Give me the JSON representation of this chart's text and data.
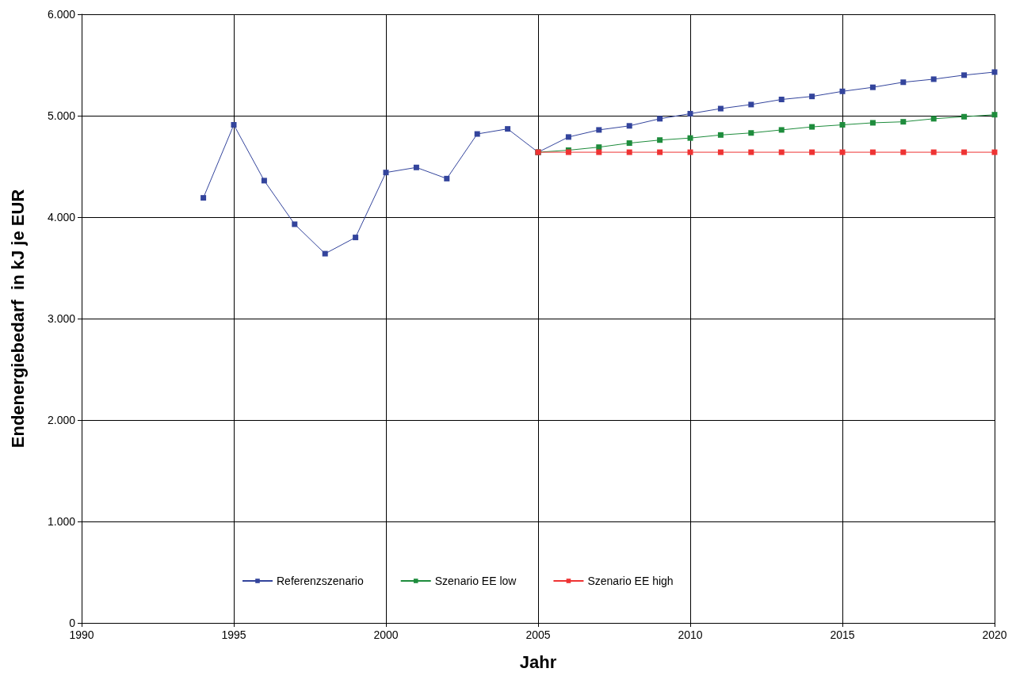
{
  "chart_data": {
    "type": "line",
    "xlabel": "Jahr",
    "ylabel": "Endenergiebedarf  in kJ je EUR",
    "x": [
      1994,
      1995,
      1996,
      1997,
      1998,
      1999,
      2000,
      2001,
      2002,
      2003,
      2004,
      2005,
      2006,
      2007,
      2008,
      2009,
      2010,
      2011,
      2012,
      2013,
      2014,
      2015,
      2016,
      2017,
      2018,
      2019,
      2020
    ],
    "series": [
      {
        "name": "Referenzszenario",
        "color": "#33449c",
        "values": [
          4190,
          4910,
          4360,
          3930,
          3640,
          3800,
          4440,
          4490,
          4380,
          4820,
          4870,
          4640,
          4790,
          4860,
          4900,
          4970,
          5020,
          5070,
          5110,
          5160,
          5190,
          5240,
          5280,
          5330,
          5360,
          5400,
          5430
        ]
      },
      {
        "name": "Szenario EE low",
        "color": "#1e8c3c",
        "x": [
          2005,
          2006,
          2007,
          2008,
          2009,
          2010,
          2011,
          2012,
          2013,
          2014,
          2015,
          2016,
          2017,
          2018,
          2019,
          2020
        ],
        "values": [
          4640,
          4660,
          4690,
          4730,
          4760,
          4780,
          4810,
          4830,
          4860,
          4890,
          4910,
          4930,
          4940,
          4970,
          4990,
          5010
        ]
      },
      {
        "name": "Szenario EE high",
        "color": "#ee3333",
        "x": [
          2005,
          2006,
          2007,
          2008,
          2009,
          2010,
          2011,
          2012,
          2013,
          2014,
          2015,
          2016,
          2017,
          2018,
          2019,
          2020
        ],
        "values": [
          4640,
          4640,
          4640,
          4640,
          4640,
          4640,
          4640,
          4640,
          4640,
          4640,
          4640,
          4640,
          4640,
          4640,
          4640,
          4640
        ]
      }
    ],
    "xlim": [
      1990,
      2020
    ],
    "xticks": [
      1990,
      1995,
      2000,
      2005,
      2010,
      2015,
      2020
    ],
    "ylim": [
      0,
      6000
    ],
    "yticks": [
      0,
      {
        "value": 1000,
        "label": "1.000"
      },
      {
        "value": 2000,
        "label": "2.000"
      },
      {
        "value": 3000,
        "label": "3.000"
      },
      {
        "value": 4000,
        "label": "4.000"
      },
      {
        "value": 5000,
        "label": "5.000"
      },
      {
        "value": 6000,
        "label": "6.000"
      }
    ],
    "grid": true,
    "legend": "bottom",
    "marker": "square",
    "line_style": "solid"
  }
}
